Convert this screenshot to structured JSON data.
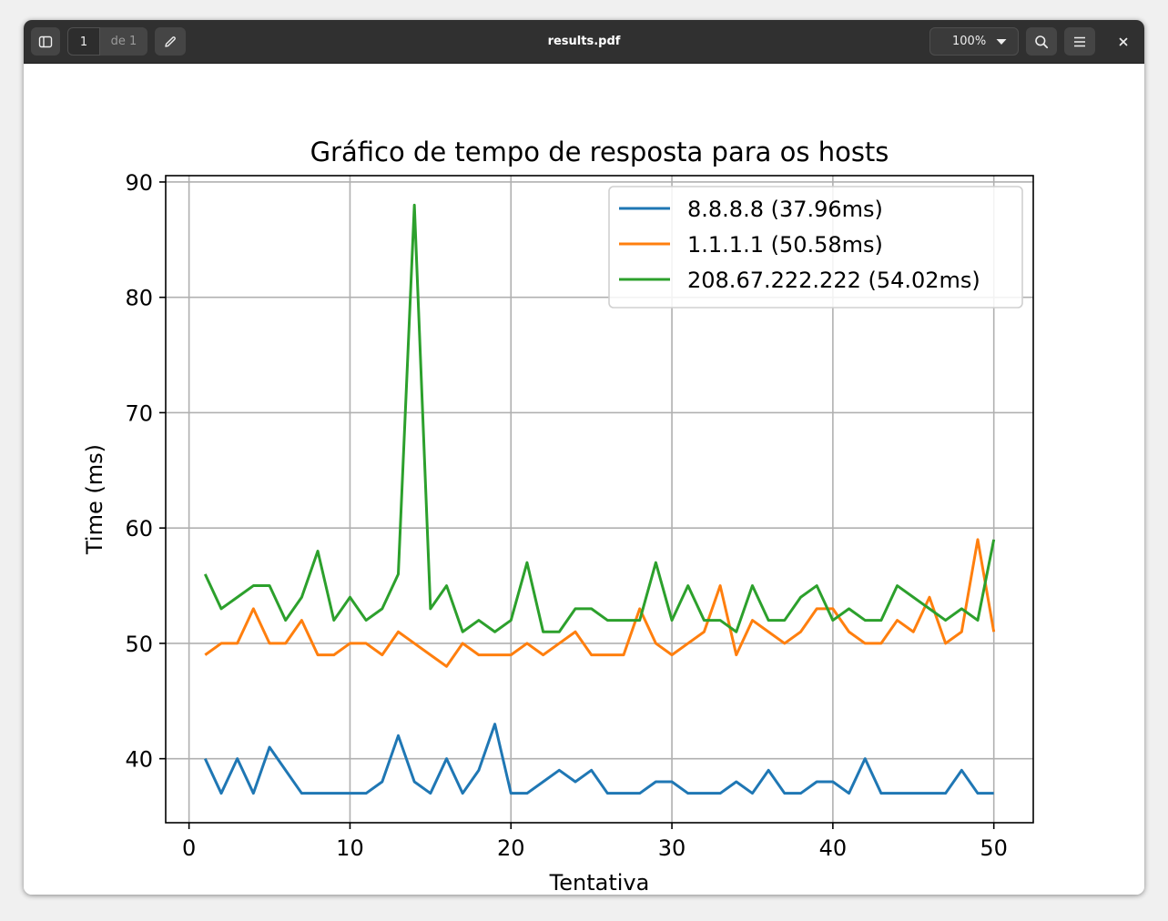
{
  "window": {
    "title": "results.pdf",
    "page_current": "1",
    "page_total_label": "de 1",
    "zoom_label": "100%",
    "icons": {
      "sidebar": "sidebar-toggle-icon",
      "annotate": "pencil-icon",
      "zoom": "chevron-down-icon",
      "search": "search-icon",
      "menu": "hamburger-menu-icon",
      "close": "close-icon"
    }
  },
  "chart_data": {
    "type": "line",
    "title": "Gráfico de tempo de resposta para os hosts",
    "xlabel": "Tentativa",
    "ylabel": "Time (ms)",
    "xlim": [
      -1.45,
      52.45
    ],
    "ylim": [
      34.45,
      90.55
    ],
    "xticks": [
      0,
      10,
      20,
      30,
      40,
      50
    ],
    "yticks": [
      40,
      50,
      60,
      70,
      80,
      90
    ],
    "grid": true,
    "legend_position": "top-right",
    "x": [
      1,
      2,
      3,
      4,
      5,
      6,
      7,
      8,
      9,
      10,
      11,
      12,
      13,
      14,
      15,
      16,
      17,
      18,
      19,
      20,
      21,
      22,
      23,
      24,
      25,
      26,
      27,
      28,
      29,
      30,
      31,
      32,
      33,
      34,
      35,
      36,
      37,
      38,
      39,
      40,
      41,
      42,
      43,
      44,
      45,
      46,
      47,
      48,
      49,
      50
    ],
    "series": [
      {
        "name": "8.8.8.8 (37.96ms)",
        "color": "#1f77b4",
        "values": [
          40,
          37,
          40,
          37,
          41,
          39,
          37,
          37,
          37,
          37,
          37,
          38,
          42,
          38,
          37,
          40,
          37,
          39,
          43,
          37,
          37,
          38,
          39,
          38,
          39,
          37,
          37,
          37,
          38,
          38,
          37,
          37,
          37,
          38,
          37,
          39,
          37,
          37,
          38,
          38,
          37,
          40,
          37,
          37,
          37,
          37,
          37,
          39,
          37,
          37
        ]
      },
      {
        "name": "1.1.1.1 (50.58ms)",
        "color": "#ff7f0e",
        "values": [
          49,
          50,
          50,
          53,
          50,
          50,
          52,
          49,
          49,
          50,
          50,
          49,
          51,
          50,
          49,
          48,
          50,
          49,
          49,
          49,
          50,
          49,
          50,
          51,
          49,
          49,
          49,
          53,
          50,
          49,
          50,
          51,
          55,
          49,
          52,
          51,
          50,
          51,
          53,
          53,
          51,
          50,
          50,
          52,
          51,
          54,
          50,
          51,
          59,
          51
        ]
      },
      {
        "name": "208.67.222.222 (54.02ms)",
        "color": "#2ca02c",
        "values": [
          56,
          53,
          54,
          55,
          55,
          52,
          54,
          58,
          52,
          54,
          52,
          53,
          56,
          88,
          53,
          55,
          51,
          52,
          51,
          52,
          57,
          51,
          51,
          53,
          53,
          52,
          52,
          52,
          57,
          52,
          55,
          52,
          52,
          51,
          55,
          52,
          52,
          54,
          55,
          52,
          53,
          52,
          52,
          55,
          54,
          53,
          52,
          53,
          52,
          59
        ]
      }
    ]
  }
}
